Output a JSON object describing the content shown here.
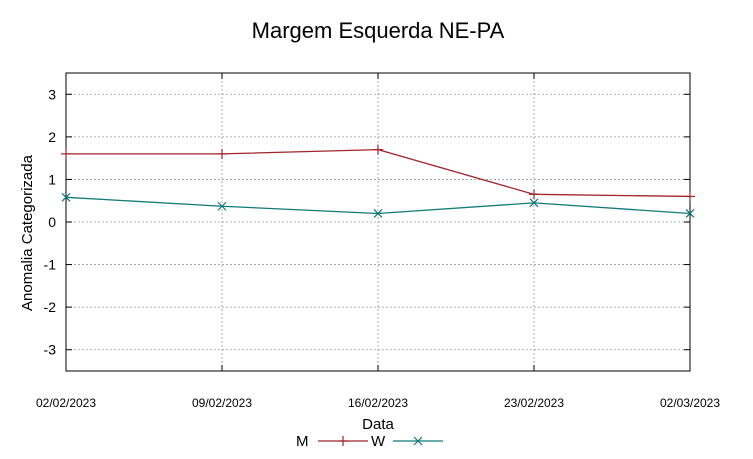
{
  "chart_data": {
    "type": "line",
    "title": "Margem Esquerda NE-PA",
    "xlabel": "Data",
    "ylabel": "Anomalia Categorizada",
    "categories": [
      "02/02/2023",
      "09/02/2023",
      "16/02/2023",
      "23/02/2023",
      "02/03/2023"
    ],
    "ylim": [
      -3.5,
      3.5
    ],
    "yticks": [
      "3",
      "2",
      "1",
      "0",
      "-1",
      "-2",
      "-3"
    ],
    "ytick_values": [
      3,
      2,
      1,
      0,
      -1,
      -2,
      -3
    ],
    "grid": true,
    "legend_position": "bottom-center",
    "series": [
      {
        "name": "M",
        "values": [
          1.6,
          1.6,
          1.7,
          0.65,
          0.6
        ],
        "color": "#a0242a",
        "marker": "plus"
      },
      {
        "name": "W",
        "values": [
          0.58,
          0.37,
          0.2,
          0.45,
          0.2
        ],
        "color": "#127a7a",
        "marker": "x"
      }
    ]
  }
}
